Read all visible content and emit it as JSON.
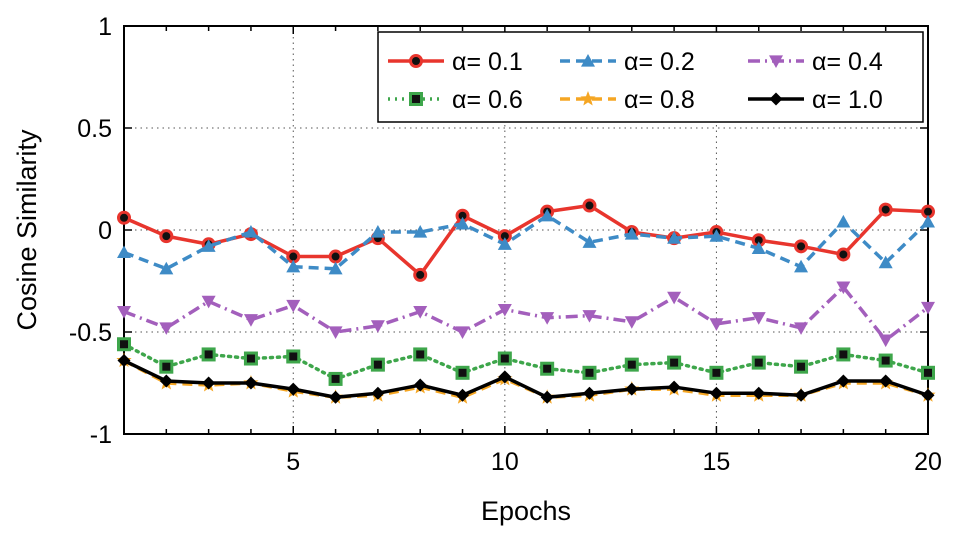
{
  "chart_data": {
    "type": "line",
    "xlabel": "Epochs",
    "ylabel": "Cosine Similarity",
    "xlim": [
      1,
      20
    ],
    "ylim": [
      -1,
      1
    ],
    "xticks": [
      5,
      10,
      15,
      20
    ],
    "yticks": [
      -1,
      -0.5,
      0,
      0.5,
      1
    ],
    "ytick_labels": [
      "-1",
      "-0.5",
      "0",
      "0.5",
      "1"
    ],
    "xtick_labels": [
      "5",
      "10",
      "15",
      "20"
    ],
    "grid": "dotted",
    "legend_position": "top-right",
    "x": [
      1,
      2,
      3,
      4,
      5,
      6,
      7,
      8,
      9,
      10,
      11,
      12,
      13,
      14,
      15,
      16,
      17,
      18,
      19,
      20
    ],
    "series": [
      {
        "name": "α= 0.1",
        "color": "#e8352d",
        "marker": "circle",
        "dash": "solid",
        "values": [
          0.06,
          -0.03,
          -0.07,
          -0.02,
          -0.13,
          -0.13,
          -0.04,
          -0.22,
          0.07,
          -0.03,
          0.09,
          0.12,
          -0.01,
          -0.04,
          -0.01,
          -0.05,
          -0.08,
          -0.12,
          0.1,
          0.09
        ]
      },
      {
        "name": "α= 0.2",
        "color": "#3e8bc6",
        "marker": "triangle-up",
        "dash": "dashed",
        "values": [
          -0.11,
          -0.19,
          -0.08,
          -0.01,
          -0.18,
          -0.19,
          -0.01,
          -0.01,
          0.03,
          -0.07,
          0.07,
          -0.06,
          -0.02,
          -0.04,
          -0.03,
          -0.09,
          -0.18,
          0.04,
          -0.16,
          0.04
        ]
      },
      {
        "name": "α= 0.4",
        "color": "#a35fbc",
        "marker": "triangle-down",
        "dash": "dashdot",
        "values": [
          -0.4,
          -0.48,
          -0.35,
          -0.44,
          -0.37,
          -0.5,
          -0.47,
          -0.4,
          -0.5,
          -0.39,
          -0.43,
          -0.42,
          -0.45,
          -0.33,
          -0.46,
          -0.43,
          -0.48,
          -0.28,
          -0.54,
          -0.38
        ]
      },
      {
        "name": "α= 0.6",
        "color": "#3ea64b",
        "marker": "square",
        "dash": "dotted",
        "values": [
          -0.56,
          -0.67,
          -0.61,
          -0.63,
          -0.62,
          -0.73,
          -0.66,
          -0.61,
          -0.7,
          -0.63,
          -0.68,
          -0.7,
          -0.66,
          -0.65,
          -0.7,
          -0.65,
          -0.67,
          -0.61,
          -0.64,
          -0.7
        ]
      },
      {
        "name": "α= 0.8",
        "color": "#f5a623",
        "marker": "star",
        "dash": "dashed",
        "values": [
          -0.64,
          -0.75,
          -0.76,
          -0.75,
          -0.79,
          -0.82,
          -0.81,
          -0.77,
          -0.82,
          -0.73,
          -0.82,
          -0.81,
          -0.78,
          -0.78,
          -0.81,
          -0.81,
          -0.81,
          -0.75,
          -0.75,
          -0.81
        ]
      },
      {
        "name": "α= 1.0",
        "color": "#000000",
        "marker": "diamond",
        "dash": "solid",
        "values": [
          -0.64,
          -0.74,
          -0.75,
          -0.75,
          -0.78,
          -0.82,
          -0.8,
          -0.76,
          -0.81,
          -0.72,
          -0.82,
          -0.8,
          -0.78,
          -0.77,
          -0.8,
          -0.8,
          -0.81,
          -0.74,
          -0.74,
          -0.81
        ]
      }
    ]
  }
}
